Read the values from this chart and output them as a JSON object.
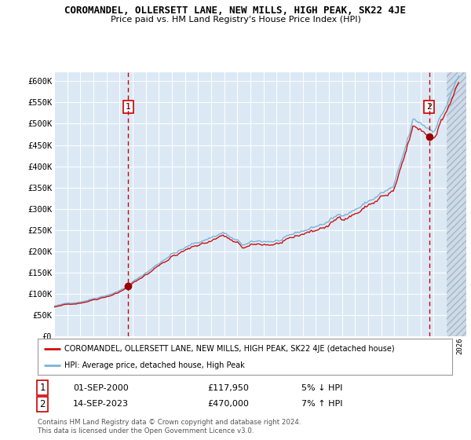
{
  "title": "COROMANDEL, OLLERSETT LANE, NEW MILLS, HIGH PEAK, SK22 4JE",
  "subtitle": "Price paid vs. HM Land Registry's House Price Index (HPI)",
  "background_color": "#ffffff",
  "plot_bg_color": "#dce9f5",
  "grid_color": "#ffffff",
  "hpi_line_color": "#7ab3d9",
  "price_line_color": "#cc1111",
  "marker_color": "#990000",
  "ylim": [
    0,
    620000
  ],
  "yticks": [
    0,
    50000,
    100000,
    150000,
    200000,
    250000,
    300000,
    350000,
    400000,
    450000,
    500000,
    550000,
    600000
  ],
  "ytick_labels": [
    "£0",
    "£50K",
    "£100K",
    "£150K",
    "£200K",
    "£250K",
    "£300K",
    "£350K",
    "£400K",
    "£450K",
    "£500K",
    "£550K",
    "£600K"
  ],
  "legend_line1": "COROMANDEL, OLLERSETT LANE, NEW MILLS, HIGH PEAK, SK22 4JE (detached house)",
  "legend_line2": "HPI: Average price, detached house, High Peak",
  "note_line1": "Contains HM Land Registry data © Crown copyright and database right 2024.",
  "note_line2": "This data is licensed under the Open Government Licence v3.0.",
  "table_row1": [
    "1",
    "01-SEP-2000",
    "£117,950",
    "5% ↓ HPI"
  ],
  "table_row2": [
    "2",
    "14-SEP-2023",
    "£470,000",
    "7% ↑ HPI"
  ],
  "sale1_x": 2000.667,
  "sale1_y": 117950,
  "sale2_x": 2023.667,
  "sale2_y": 470000,
  "hatch_start": 2025.0,
  "xlim": [
    1995.0,
    2026.5
  ]
}
